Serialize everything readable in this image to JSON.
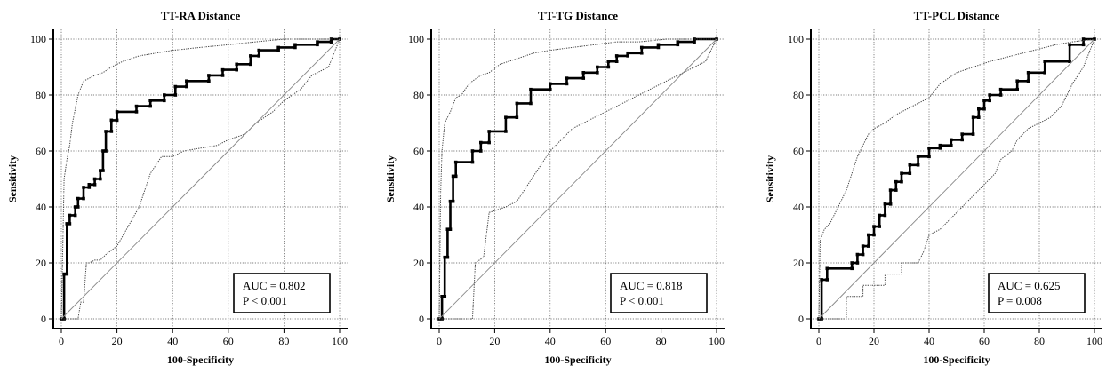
{
  "chart_data": [
    {
      "type": "line",
      "title": "TT-RA Distance",
      "xlabel": "100-Specificity",
      "ylabel": "Sensitivity",
      "xlim": [
        0,
        100
      ],
      "ylim": [
        0,
        100
      ],
      "xticks": [
        "0",
        "20",
        "40",
        "60",
        "80",
        "100"
      ],
      "yticks": [
        "0",
        "20",
        "40",
        "60",
        "80",
        "100"
      ],
      "grid": true,
      "annotation": [
        "AUC = 0.802",
        "P < 0.001"
      ],
      "annotation_position": "bottom-right",
      "series": [
        {
          "style": "bold-step-with-markers",
          "x": [
            0,
            1,
            1,
            2,
            2,
            3,
            3,
            5,
            5,
            6,
            6,
            8,
            8,
            10,
            10,
            12,
            12,
            14,
            14,
            15,
            15,
            16,
            16,
            18,
            18,
            20,
            20,
            27,
            27,
            32,
            32,
            37,
            37,
            41,
            41,
            45,
            45,
            53,
            53,
            58,
            58,
            63,
            63,
            68,
            68,
            71,
            71,
            78,
            78,
            84,
            84,
            92,
            92,
            97,
            97,
            100
          ],
          "y": [
            0,
            0,
            16,
            16,
            34,
            34,
            37,
            37,
            40,
            40,
            43,
            43,
            47,
            47,
            48,
            48,
            50,
            50,
            53,
            53,
            60,
            60,
            67,
            67,
            71,
            71,
            74,
            74,
            76,
            76,
            78,
            78,
            80,
            80,
            83,
            83,
            85,
            85,
            87,
            87,
            89,
            89,
            91,
            91,
            94,
            94,
            96,
            96,
            97,
            97,
            98,
            98,
            99,
            99,
            100,
            100
          ]
        },
        {
          "style": "dotted-upper-ci",
          "x": [
            0,
            0.5,
            1,
            2,
            3,
            4,
            6,
            8,
            10,
            12,
            15,
            18,
            22,
            28,
            34,
            40,
            50,
            60,
            70,
            80,
            100
          ],
          "y": [
            0,
            25,
            50,
            57,
            62,
            70,
            80,
            85,
            86,
            87,
            88,
            90,
            92,
            94,
            95,
            96,
            97,
            98,
            99,
            100,
            100
          ]
        },
        {
          "style": "dotted-lower-ci",
          "x": [
            0,
            6,
            7,
            8,
            9,
            10,
            12,
            14,
            16,
            20,
            24,
            28,
            32,
            36,
            40,
            44,
            50,
            56,
            60,
            66,
            70,
            76,
            80,
            86,
            90,
            96,
            100
          ],
          "y": [
            0,
            0,
            6,
            6,
            20,
            20,
            21,
            21,
            23,
            26,
            33,
            40,
            52,
            58,
            58,
            60,
            61,
            62,
            64,
            66,
            70,
            74,
            78,
            82,
            87,
            90,
            100
          ]
        },
        {
          "style": "diagonal-reference",
          "x": [
            0,
            100
          ],
          "y": [
            0,
            100
          ]
        }
      ]
    },
    {
      "type": "line",
      "title": "TT-TG Distance",
      "xlabel": "100-Specificity",
      "ylabel": "Sensitivity",
      "xlim": [
        0,
        100
      ],
      "ylim": [
        0,
        100
      ],
      "xticks": [
        "0",
        "20",
        "40",
        "60",
        "80",
        "100"
      ],
      "yticks": [
        "0",
        "20",
        "40",
        "60",
        "80",
        "100"
      ],
      "grid": true,
      "annotation": [
        "AUC = 0.818",
        "P < 0.001"
      ],
      "annotation_position": "bottom-right",
      "series": [
        {
          "style": "bold-step-with-markers",
          "x": [
            0,
            1,
            1,
            2,
            2,
            3,
            3,
            4,
            4,
            5,
            5,
            6,
            6,
            12,
            12,
            15,
            15,
            18,
            18,
            24,
            24,
            28,
            28,
            33,
            33,
            40,
            40,
            46,
            46,
            52,
            52,
            57,
            57,
            61,
            61,
            64,
            64,
            68,
            68,
            73,
            73,
            79,
            79,
            86,
            86,
            92,
            92,
            100
          ],
          "y": [
            0,
            0,
            8,
            8,
            22,
            22,
            32,
            32,
            42,
            42,
            51,
            51,
            56,
            56,
            60,
            60,
            63,
            63,
            67,
            67,
            72,
            72,
            77,
            77,
            82,
            82,
            84,
            84,
            86,
            86,
            88,
            88,
            90,
            90,
            92,
            92,
            94,
            94,
            95,
            95,
            97,
            97,
            98,
            98,
            99,
            99,
            100,
            100
          ]
        },
        {
          "style": "dotted-upper-ci",
          "x": [
            0,
            0.5,
            1,
            2,
            4,
            6,
            8,
            10,
            12,
            15,
            18,
            22,
            28,
            34,
            40,
            48,
            56,
            64,
            72,
            82,
            90,
            100
          ],
          "y": [
            0,
            45,
            60,
            70,
            74,
            79,
            80,
            83,
            85,
            87,
            88,
            91,
            93,
            95,
            96,
            97,
            98,
            99,
            99,
            100,
            100,
            100
          ]
        },
        {
          "style": "dotted-lower-ci",
          "x": [
            0,
            12,
            13,
            16,
            18,
            24,
            26,
            28,
            30,
            32,
            36,
            40,
            44,
            48,
            52,
            56,
            60,
            64,
            68,
            72,
            76,
            80,
            84,
            88,
            92,
            96,
            100
          ],
          "y": [
            0,
            0,
            20,
            22,
            38,
            40,
            41,
            42,
            45,
            48,
            54,
            60,
            64,
            68,
            70,
            72,
            74,
            76,
            78,
            80,
            82,
            84,
            86,
            88,
            90,
            92,
            100
          ]
        },
        {
          "style": "diagonal-reference",
          "x": [
            0,
            100
          ],
          "y": [
            0,
            100
          ]
        }
      ]
    },
    {
      "type": "line",
      "title": "TT-PCL Distance",
      "xlabel": "100-Specificity",
      "ylabel": "Sensitivity",
      "xlim": [
        0,
        100
      ],
      "ylim": [
        0,
        100
      ],
      "xticks": [
        "0",
        "20",
        "40",
        "60",
        "80",
        "100"
      ],
      "yticks": [
        "0",
        "20",
        "40",
        "60",
        "80",
        "100"
      ],
      "grid": true,
      "annotation": [
        "AUC = 0.625",
        "P = 0.008"
      ],
      "annotation_position": "bottom-right",
      "series": [
        {
          "style": "bold-step-with-markers",
          "x": [
            0,
            1,
            1,
            3,
            3,
            12,
            12,
            14,
            14,
            16,
            16,
            18,
            18,
            20,
            20,
            22,
            22,
            24,
            24,
            26,
            26,
            28,
            28,
            30,
            30,
            33,
            33,
            36,
            36,
            40,
            40,
            44,
            44,
            48,
            48,
            52,
            52,
            56,
            56,
            58,
            58,
            60,
            60,
            62,
            62,
            66,
            66,
            72,
            72,
            76,
            76,
            82,
            82,
            91,
            91,
            96,
            96,
            100
          ],
          "y": [
            0,
            0,
            14,
            14,
            18,
            18,
            20,
            20,
            23,
            23,
            26,
            26,
            30,
            30,
            33,
            33,
            37,
            37,
            41,
            41,
            46,
            46,
            49,
            49,
            52,
            52,
            55,
            55,
            58,
            58,
            61,
            61,
            62,
            62,
            64,
            64,
            66,
            66,
            72,
            72,
            75,
            75,
            78,
            78,
            80,
            80,
            82,
            82,
            85,
            85,
            88,
            88,
            92,
            92,
            98,
            98,
            100,
            100
          ]
        },
        {
          "style": "dotted-upper-ci",
          "x": [
            0,
            0.5,
            2,
            4,
            6,
            8,
            10,
            12,
            14,
            16,
            18,
            20,
            24,
            28,
            32,
            36,
            40,
            44,
            50,
            56,
            62,
            70,
            78,
            86,
            92,
            100
          ],
          "y": [
            0,
            28,
            32,
            34,
            38,
            42,
            46,
            52,
            58,
            62,
            66,
            68,
            70,
            73,
            75,
            77,
            79,
            84,
            88,
            90,
            92,
            94,
            96,
            98,
            99,
            100
          ]
        },
        {
          "style": "dotted-lower-ci",
          "x": [
            0,
            10,
            10,
            16,
            16,
            24,
            24,
            30,
            30,
            36,
            38,
            40,
            44,
            48,
            52,
            56,
            60,
            64,
            66,
            70,
            72,
            76,
            80,
            84,
            88,
            90,
            92,
            96,
            100
          ],
          "y": [
            0,
            0,
            8,
            8,
            12,
            12,
            16,
            16,
            20,
            20,
            24,
            30,
            32,
            36,
            40,
            44,
            48,
            52,
            57,
            60,
            64,
            68,
            70,
            72,
            76,
            80,
            84,
            90,
            100
          ]
        },
        {
          "style": "diagonal-reference",
          "x": [
            0,
            100
          ],
          "y": [
            0,
            100
          ]
        }
      ]
    }
  ]
}
